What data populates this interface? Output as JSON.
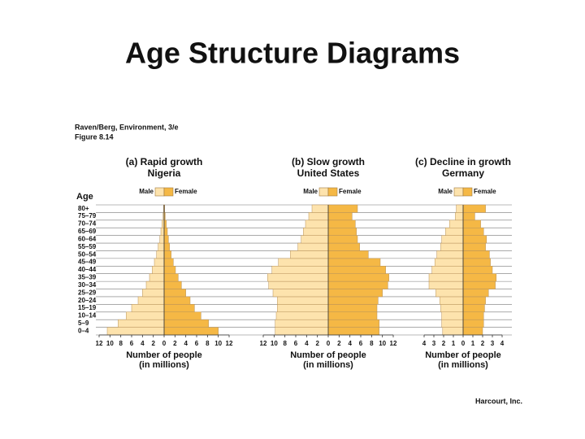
{
  "title": "Age Structure Diagrams",
  "source": [
    "Raven/Berg, Environment, 3/e",
    "Figure 8.14"
  ],
  "credit": "Harcourt, Inc.",
  "chart_data": [
    {
      "type": "pyramid",
      "title": "(a) Rapid growth",
      "subtitle": "Nigeria",
      "ylabel": "Age",
      "xlabel": [
        "Number of people",
        "(in millions)"
      ],
      "categories": [
        "0–4",
        "5–9",
        "10–14",
        "15–19",
        "20–24",
        "25–29",
        "30–34",
        "35–39",
        "40–44",
        "45–49",
        "50–54",
        "55–59",
        "60–64",
        "65–69",
        "70–74",
        "75–79",
        "80+"
      ],
      "series": [
        {
          "name": "Male",
          "color": "#fde3ad",
          "values": [
            10.5,
            8.5,
            7,
            6,
            4.8,
            4,
            3.3,
            2.7,
            2.2,
            1.8,
            1.4,
            1.1,
            0.8,
            0.6,
            0.4,
            0.2,
            0.1
          ]
        },
        {
          "name": "Female",
          "color": "#f5b845",
          "values": [
            10,
            8.2,
            6.8,
            5.6,
            4.8,
            4,
            3.2,
            2.6,
            2.1,
            1.7,
            1.3,
            1,
            0.8,
            0.6,
            0.4,
            0.2,
            0.1
          ]
        }
      ],
      "xlim": [
        0,
        12
      ],
      "xticks": [
        0,
        2,
        4,
        6,
        8,
        10,
        12
      ]
    },
    {
      "type": "pyramid",
      "title": "(b) Slow growth",
      "subtitle": "United States",
      "xlabel": [
        "Number of people",
        "(in millions)"
      ],
      "series": [
        {
          "name": "Male",
          "color": "#fde3ad",
          "values": [
            9.8,
            9.8,
            9.6,
            9.4,
            9.4,
            10.2,
            11,
            11.2,
            10.4,
            9.2,
            7,
            5.6,
            5,
            4.6,
            4.2,
            3.6,
            3
          ]
        },
        {
          "name": "Female",
          "color": "#f5b845",
          "values": [
            9.4,
            9.4,
            9,
            9,
            9.2,
            10,
            11,
            11.2,
            10.6,
            9.6,
            7.4,
            5.8,
            5.4,
            5.2,
            5,
            4.4,
            5.4
          ]
        }
      ],
      "xlim": [
        0,
        12
      ],
      "xticks": [
        0,
        2,
        4,
        6,
        8,
        10,
        12
      ]
    },
    {
      "type": "pyramid",
      "title": "(c) Decline in growth",
      "subtitle": "Germany",
      "xlabel": [
        "Number of people",
        "(in millions)"
      ],
      "series": [
        {
          "name": "Male",
          "color": "#fde3ad",
          "values": [
            2.1,
            2.2,
            2.2,
            2.3,
            2.4,
            2.8,
            3.5,
            3.5,
            3.2,
            2.9,
            2.7,
            2.3,
            2.2,
            1.8,
            1.4,
            0.8,
            0.7
          ]
        },
        {
          "name": "Female",
          "color": "#f5b845",
          "values": [
            2,
            2.1,
            2.1,
            2.2,
            2.3,
            2.6,
            3.3,
            3.4,
            3,
            2.8,
            2.7,
            2.3,
            2.4,
            2.1,
            1.8,
            1.2,
            2.3
          ]
        }
      ],
      "xlim": [
        0,
        4
      ],
      "xticks": [
        0,
        1,
        2,
        3,
        4
      ]
    }
  ]
}
